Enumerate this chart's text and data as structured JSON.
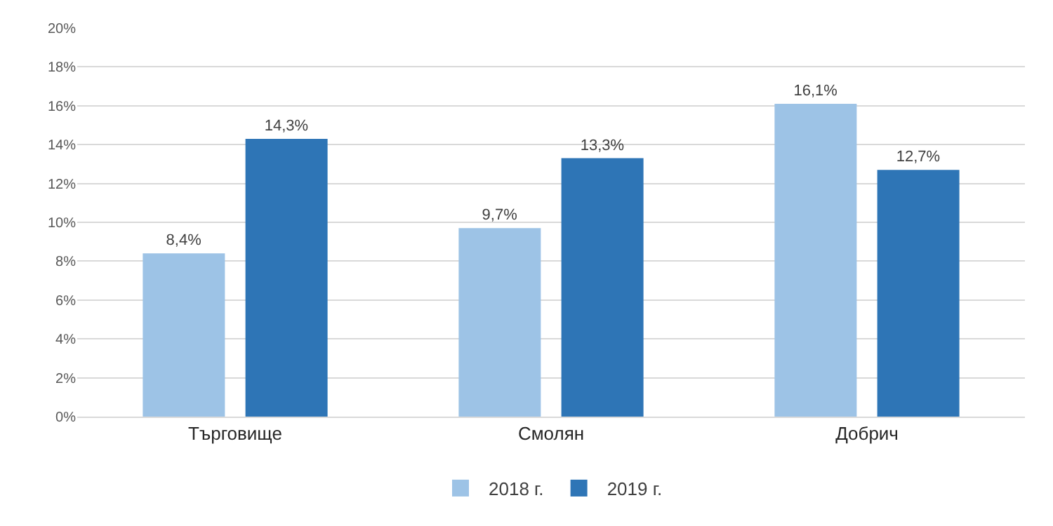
{
  "chart_data": {
    "type": "bar",
    "categories": [
      "Търговище",
      "Смолян",
      "Добрич"
    ],
    "series": [
      {
        "name": "2018 г.",
        "color": "#9dc3e6",
        "values": [
          8.4,
          9.7,
          16.1
        ],
        "value_labels": [
          "8,4%",
          "9,7%",
          "16,1%"
        ]
      },
      {
        "name": "2019 г.",
        "color": "#2e75b6",
        "values": [
          14.3,
          13.3,
          12.7
        ],
        "value_labels": [
          "14,3%",
          "13,3%",
          "12,7%"
        ]
      }
    ],
    "ylim": [
      0,
      20
    ],
    "yticks": [
      {
        "value": 0,
        "label": "0%"
      },
      {
        "value": 2,
        "label": "2%"
      },
      {
        "value": 4,
        "label": "4%"
      },
      {
        "value": 6,
        "label": "6%"
      },
      {
        "value": 8,
        "label": "8%"
      },
      {
        "value": 10,
        "label": "10%"
      },
      {
        "value": 12,
        "label": "12%"
      },
      {
        "value": 14,
        "label": "14%"
      },
      {
        "value": 16,
        "label": "16%"
      },
      {
        "value": 18,
        "label": "18%"
      },
      {
        "value": 20,
        "label": "20%"
      }
    ],
    "grid": "y",
    "legend": "bottom"
  }
}
